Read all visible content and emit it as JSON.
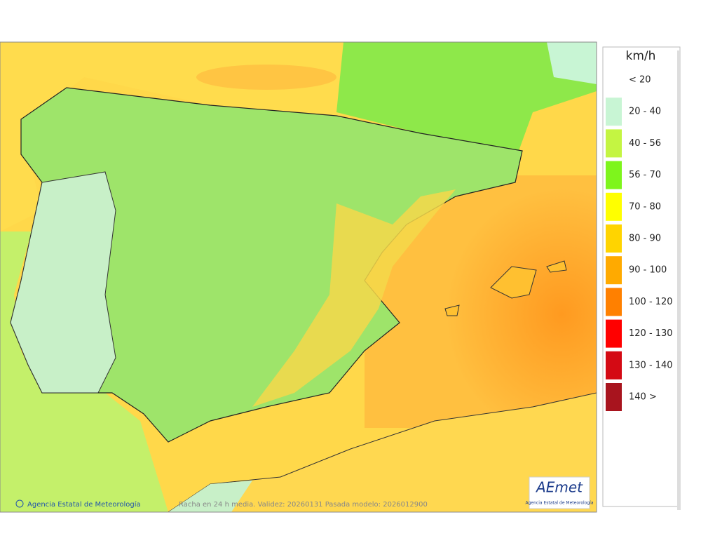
{
  "legend": {
    "title": "km/h",
    "items": [
      {
        "label": "< 20"
      },
      {
        "label": "20 - 40",
        "color": "#c8f5d4"
      },
      {
        "label": "40 - 56",
        "color": "#c4f542"
      },
      {
        "label": "56 - 70",
        "color": "#7ef51c"
      },
      {
        "label": "70 - 80",
        "color": "#ffff00"
      },
      {
        "label": "80 - 90",
        "color": "#ffd400"
      },
      {
        "label": "90 - 100",
        "color": "#ffaa00"
      },
      {
        "label": "100 - 120",
        "color": "#ff8000"
      },
      {
        "label": "120 - 130",
        "color": "#ff0000"
      },
      {
        "label": "130 - 140",
        "color": "#d40a14"
      },
      {
        "label": "140 >",
        "color": "#a8141e"
      }
    ]
  },
  "footer": {
    "copyright": "Agencia Estatal de Meteorología",
    "caption": "Racha en 24 h media. Validez: 20260131 Pasada modelo: 2026012900"
  },
  "logo": {
    "name": "AEmet",
    "subtitle": "Agencia Estatal de Meteorología"
  }
}
